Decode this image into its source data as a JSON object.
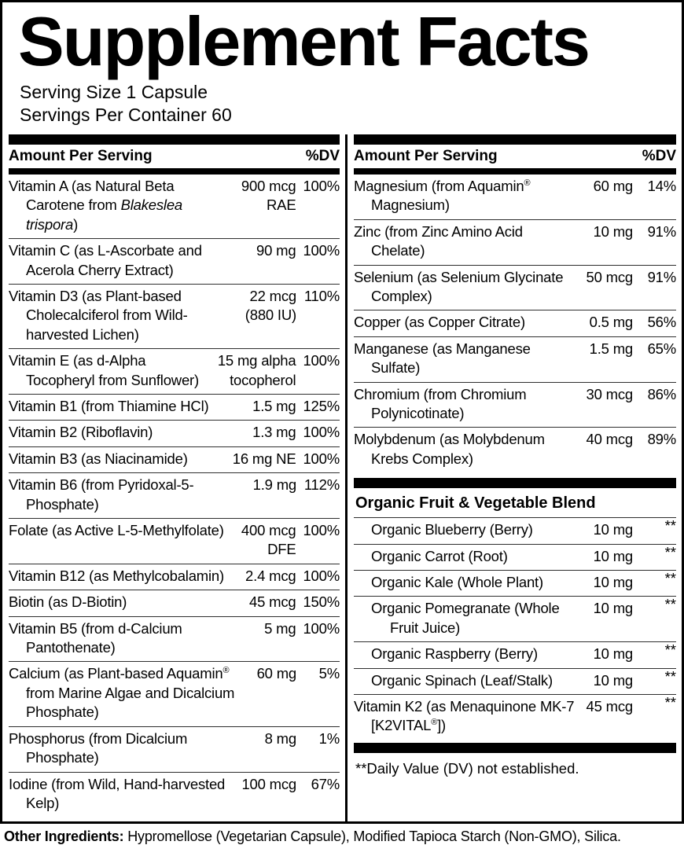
{
  "title": "Supplement Facts",
  "serving": {
    "size": "Serving Size 1 Capsule",
    "per_container": "Servings Per Container 60"
  },
  "table_header": {
    "amount": "Amount Per Serving",
    "dv": "%DV"
  },
  "colors": {
    "text": "#000000",
    "background": "#ffffff",
    "rule": "#2e2e2e"
  },
  "left_rows": [
    {
      "name_pre": "Vitamin A (as Natural Beta Carotene from ",
      "name_italic": "Blakeslea trispora",
      "name_post": ")",
      "amount": "900 mcg\nRAE",
      "dv": "100%"
    },
    {
      "name": "Vitamin C (as L-Ascorbate and Acerola Cherry Extract)",
      "amount": "90 mg",
      "dv": "100%"
    },
    {
      "name": "Vitamin D3 (as Plant-based Cholecalciferol from Wild-harvested Lichen)",
      "amount": "22 mcg\n(880 IU)",
      "dv": "110%"
    },
    {
      "name": "Vitamin E (as d-Alpha Tocopheryl from Sunflower)",
      "amount": "15 mg alpha\ntocopherol",
      "dv": "100%"
    },
    {
      "name": "Vitamin B1 (from Thiamine HCl)",
      "amount": "1.5 mg",
      "dv": "125%"
    },
    {
      "name": "Vitamin B2 (Riboflavin)",
      "amount": "1.3 mg",
      "dv": "100%"
    },
    {
      "name": "Vitamin B3 (as Niacinamide)",
      "amount": "16 mg NE",
      "dv": "100%"
    },
    {
      "name": "Vitamin B6 (from Pyridoxal-5-Phosphate)",
      "amount": "1.9 mg",
      "dv": "112%"
    },
    {
      "name": "Folate (as Active L-5-Methylfolate)",
      "amount": "400 mcg\nDFE",
      "dv": "100%"
    },
    {
      "name": "Vitamin B12 (as Methylcobalamin)",
      "amount": "2.4 mcg",
      "dv": "100%"
    },
    {
      "name": "Biotin (as D-Biotin)",
      "amount": "45 mcg",
      "dv": "150%"
    },
    {
      "name": "Vitamin B5 (from d-Calcium Pantothenate)",
      "amount": "5 mg",
      "dv": "100%"
    },
    {
      "name_pre": "Calcium (as Plant-based Aquamin",
      "reg": "®",
      "name_post": " from Marine Algae and Dicalcium Phosphate)",
      "amount": "60 mg",
      "dv": "5%"
    },
    {
      "name": "Phosphorus (from Dicalcium Phosphate)",
      "amount": "8 mg",
      "dv": "1%"
    },
    {
      "name": "Iodine (from Wild, Hand-harvested Kelp)",
      "amount": "100 mcg",
      "dv": "67%"
    }
  ],
  "right_rows": [
    {
      "name_pre": "Magnesium (from Aquamin",
      "reg": "®",
      "name_post": " Magnesium)",
      "amount": "60 mg",
      "dv": "14%"
    },
    {
      "name": "Zinc (from Zinc Amino Acid Chelate)",
      "amount": "10 mg",
      "dv": "91%"
    },
    {
      "name": "Selenium (as Selenium Glycinate Complex)",
      "amount": "50 mcg",
      "dv": "91%"
    },
    {
      "name": "Copper (as Copper Citrate)",
      "amount": "0.5 mg",
      "dv": "56%"
    },
    {
      "name": "Manganese (as Manganese Sulfate)",
      "amount": "1.5 mg",
      "dv": "65%"
    },
    {
      "name": "Chromium (from Chromium Polynicotinate)",
      "amount": "30 mcg",
      "dv": "86%"
    },
    {
      "name": "Molybdenum (as Molybdenum Krebs Complex)",
      "amount": "40 mcg",
      "dv": "89%"
    }
  ],
  "blend": {
    "header": "Organic Fruit & Vegetable Blend",
    "rows": [
      {
        "name": "Organic Blueberry (Berry)",
        "amount": "10 mg",
        "dv": "**"
      },
      {
        "name": "Organic Carrot (Root)",
        "amount": "10 mg",
        "dv": "**"
      },
      {
        "name": "Organic Kale (Whole Plant)",
        "amount": "10 mg",
        "dv": "**"
      },
      {
        "name": "Organic Pomegranate (Whole Fruit Juice)",
        "amount": "10 mg",
        "dv": "**"
      },
      {
        "name": "Organic Raspberry (Berry)",
        "amount": "10 mg",
        "dv": "**"
      },
      {
        "name": "Organic Spinach (Leaf/Stalk)",
        "amount": "10 mg",
        "dv": "**"
      }
    ],
    "k2_row": {
      "name_pre": "Vitamin K2 (as Menaquinone MK-7 [K2VITAL",
      "reg": "®",
      "name_post": "])",
      "amount": "45 mcg",
      "dv": "**"
    }
  },
  "footnote": "**Daily Value (DV) not established.",
  "other_ingredients": {
    "label": "Other Ingredients:",
    "text": " Hypromellose (Vegetarian Capsule), Modified Tapioca Starch (Non-GMO), Silica."
  }
}
